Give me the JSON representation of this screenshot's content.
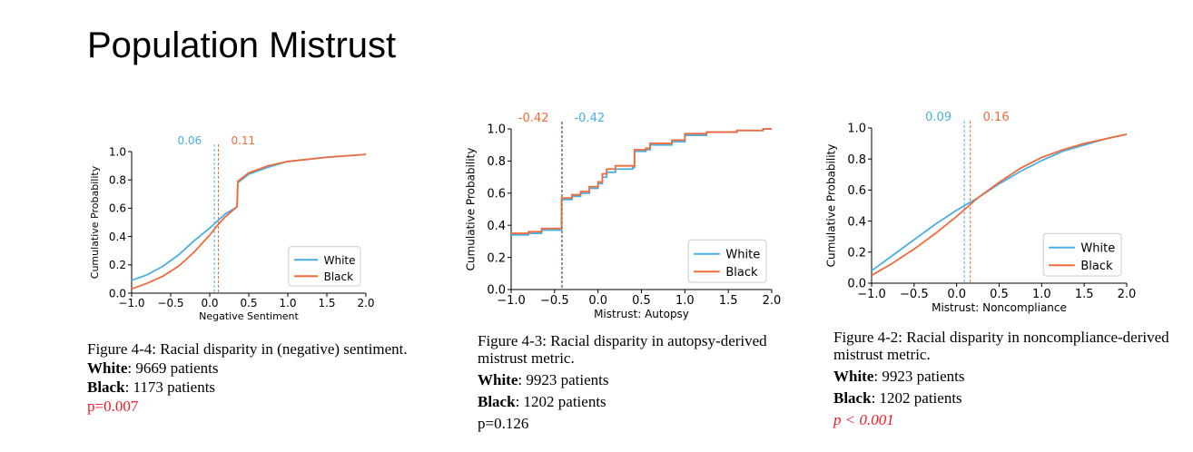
{
  "page": {
    "title": "Population Mistrust"
  },
  "colors": {
    "white_series": "#4aaee6",
    "black_series": "#f06b3b",
    "red_text": "#ee1c25",
    "axis": "#000000"
  },
  "figures": [
    {
      "caption": "Figure 4-4: Racial disparity in (negative) sentiment.",
      "white_label": "White",
      "white_count": ": 9669 patients",
      "black_label": "Black",
      "black_count": ": 1173 patients",
      "pvalue": "p=0.007",
      "pvalue_red": true
    },
    {
      "caption": "Figure 4-3: Racial disparity in autopsy-derived mistrust metric.",
      "white_label": "White",
      "white_count": ": 9923 patients",
      "black_label": "Black",
      "black_count": ": 1202 patients",
      "pvalue": "p=0.126",
      "pvalue_red": false
    },
    {
      "caption": "Figure 4-2: Racial disparity in noncompliance-derived mistrust metric.",
      "white_label": "White",
      "white_count": ": 9923 patients",
      "black_label": "Black",
      "black_count": ": 1202 patients",
      "pvalue": "p < 0.001",
      "pvalue_red": true
    }
  ],
  "chart_data": [
    {
      "type": "line",
      "title": "",
      "xlabel": "Negative Sentiment",
      "ylabel": "Cumulative Probability",
      "xlim": [
        -1.0,
        2.0
      ],
      "ylim": [
        0.0,
        1.0
      ],
      "xticks": [
        "−1.0",
        "−0.5",
        "0.0",
        "0.5",
        "1.0",
        "1.5",
        "2.0"
      ],
      "xtick_values": [
        -1.0,
        -0.5,
        0.0,
        0.5,
        1.0,
        1.5,
        2.0
      ],
      "yticks": [
        "0.0",
        "0.2",
        "0.4",
        "0.6",
        "0.8",
        "1.0"
      ],
      "ytick_values": [
        0.0,
        0.2,
        0.4,
        0.6,
        0.8,
        1.0
      ],
      "legend": [
        "White",
        "Black"
      ],
      "legend_position": "lower-right",
      "series": [
        {
          "name": "White",
          "points": [
            [
              -1.0,
              0.09
            ],
            [
              -0.8,
              0.13
            ],
            [
              -0.6,
              0.19
            ],
            [
              -0.4,
              0.27
            ],
            [
              -0.2,
              0.37
            ],
            [
              0.0,
              0.46
            ],
            [
              0.1,
              0.51
            ],
            [
              0.2,
              0.56
            ],
            [
              0.35,
              0.61
            ],
            [
              0.36,
              0.78
            ],
            [
              0.5,
              0.84
            ],
            [
              0.75,
              0.89
            ],
            [
              1.0,
              0.93
            ],
            [
              1.5,
              0.96
            ],
            [
              2.0,
              0.98
            ]
          ]
        },
        {
          "name": "Black",
          "points": [
            [
              -1.0,
              0.03
            ],
            [
              -0.8,
              0.07
            ],
            [
              -0.6,
              0.12
            ],
            [
              -0.4,
              0.19
            ],
            [
              -0.2,
              0.29
            ],
            [
              0.0,
              0.41
            ],
            [
              0.1,
              0.48
            ],
            [
              0.2,
              0.54
            ],
            [
              0.35,
              0.61
            ],
            [
              0.36,
              0.79
            ],
            [
              0.5,
              0.85
            ],
            [
              0.75,
              0.9
            ],
            [
              1.0,
              0.93
            ],
            [
              1.5,
              0.96
            ],
            [
              2.0,
              0.98
            ]
          ]
        }
      ],
      "vlines": [
        {
          "x": 0.06,
          "label": "0.06",
          "series": "White"
        },
        {
          "x": 0.11,
          "label": "0.11",
          "series": "Black"
        }
      ],
      "vline_label_order": [
        "White",
        "Black"
      ]
    },
    {
      "type": "line",
      "title": "",
      "xlabel": "Mistrust: Autopsy",
      "ylabel": "Cumulative Probability",
      "xlim": [
        -1.0,
        2.0
      ],
      "ylim": [
        0.0,
        1.0
      ],
      "xticks": [
        "−1.0",
        "−0.5",
        "0.0",
        "0.5",
        "1.0",
        "1.5",
        "2.0"
      ],
      "xtick_values": [
        -1.0,
        -0.5,
        0.0,
        0.5,
        1.0,
        1.5,
        2.0
      ],
      "yticks": [
        "0.0",
        "0.2",
        "0.4",
        "0.6",
        "0.8",
        "1.0"
      ],
      "ytick_values": [
        0.0,
        0.2,
        0.4,
        0.6,
        0.8,
        1.0
      ],
      "legend": [
        "White",
        "Black"
      ],
      "legend_position": "lower-right",
      "series": [
        {
          "name": "White",
          "step": true,
          "points": [
            [
              -1.0,
              0.34
            ],
            [
              -0.8,
              0.35
            ],
            [
              -0.65,
              0.37
            ],
            [
              -0.43,
              0.37
            ],
            [
              -0.42,
              0.56
            ],
            [
              -0.3,
              0.58
            ],
            [
              -0.2,
              0.6
            ],
            [
              -0.1,
              0.63
            ],
            [
              0.0,
              0.66
            ],
            [
              0.05,
              0.7
            ],
            [
              0.1,
              0.73
            ],
            [
              0.2,
              0.75
            ],
            [
              0.4,
              0.76
            ],
            [
              0.42,
              0.86
            ],
            [
              0.55,
              0.87
            ],
            [
              0.6,
              0.9
            ],
            [
              0.85,
              0.92
            ],
            [
              1.0,
              0.96
            ],
            [
              1.25,
              0.98
            ],
            [
              1.6,
              0.99
            ],
            [
              1.9,
              1.0
            ],
            [
              2.0,
              1.0
            ]
          ]
        },
        {
          "name": "Black",
          "step": true,
          "points": [
            [
              -1.0,
              0.35
            ],
            [
              -0.8,
              0.36
            ],
            [
              -0.65,
              0.38
            ],
            [
              -0.43,
              0.38
            ],
            [
              -0.42,
              0.57
            ],
            [
              -0.3,
              0.59
            ],
            [
              -0.2,
              0.61
            ],
            [
              -0.1,
              0.64
            ],
            [
              0.0,
              0.67
            ],
            [
              0.05,
              0.72
            ],
            [
              0.1,
              0.75
            ],
            [
              0.2,
              0.77
            ],
            [
              0.4,
              0.77
            ],
            [
              0.42,
              0.87
            ],
            [
              0.55,
              0.88
            ],
            [
              0.6,
              0.91
            ],
            [
              0.85,
              0.93
            ],
            [
              1.0,
              0.97
            ],
            [
              1.25,
              0.98
            ],
            [
              1.6,
              0.99
            ],
            [
              1.9,
              1.0
            ],
            [
              2.0,
              1.0
            ]
          ]
        }
      ],
      "vlines": [
        {
          "x": -0.42,
          "label": "-0.42",
          "series": "Black"
        },
        {
          "x": -0.42,
          "label": "-0.42",
          "series": "White"
        }
      ],
      "vline_label_order": [
        "Black",
        "White"
      ]
    },
    {
      "type": "line",
      "title": "",
      "xlabel": "Mistrust: Noncompliance",
      "ylabel": "Cumulative Probability",
      "xlim": [
        -1.0,
        2.0
      ],
      "ylim": [
        0.0,
        1.0
      ],
      "xticks": [
        "−1.0",
        "−0.5",
        "0.0",
        "0.5",
        "1.0",
        "1.5",
        "2.0"
      ],
      "xtick_values": [
        -1.0,
        -0.5,
        0.0,
        0.5,
        1.0,
        1.5,
        2.0
      ],
      "yticks": [
        "0.0",
        "0.2",
        "0.4",
        "0.6",
        "0.8",
        "1.0"
      ],
      "ytick_values": [
        0.0,
        0.2,
        0.4,
        0.6,
        0.8,
        1.0
      ],
      "legend": [
        "White",
        "Black"
      ],
      "legend_position": "lower-right",
      "series": [
        {
          "name": "White",
          "points": [
            [
              -1.0,
              0.08
            ],
            [
              -0.75,
              0.18
            ],
            [
              -0.5,
              0.28
            ],
            [
              -0.25,
              0.38
            ],
            [
              0.0,
              0.47
            ],
            [
              0.25,
              0.55
            ],
            [
              0.5,
              0.64
            ],
            [
              0.75,
              0.72
            ],
            [
              1.0,
              0.79
            ],
            [
              1.25,
              0.85
            ],
            [
              1.5,
              0.89
            ],
            [
              1.75,
              0.93
            ],
            [
              2.0,
              0.96
            ]
          ]
        },
        {
          "name": "Black",
          "points": [
            [
              -1.0,
              0.05
            ],
            [
              -0.75,
              0.13
            ],
            [
              -0.5,
              0.22
            ],
            [
              -0.25,
              0.32
            ],
            [
              0.0,
              0.43
            ],
            [
              0.25,
              0.55
            ],
            [
              0.5,
              0.65
            ],
            [
              0.75,
              0.74
            ],
            [
              1.0,
              0.81
            ],
            [
              1.25,
              0.86
            ],
            [
              1.5,
              0.9
            ],
            [
              1.75,
              0.93
            ],
            [
              2.0,
              0.96
            ]
          ]
        }
      ],
      "vlines": [
        {
          "x": 0.09,
          "label": "0.09",
          "series": "White"
        },
        {
          "x": 0.16,
          "label": "0.16",
          "series": "Black"
        }
      ],
      "vline_label_order": [
        "White",
        "Black"
      ]
    }
  ]
}
